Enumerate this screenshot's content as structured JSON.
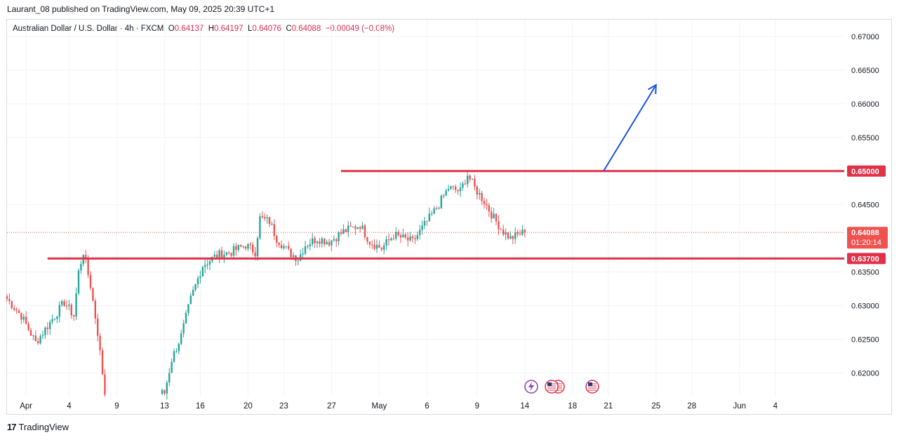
{
  "header": {
    "publish_line": "Laurant_08 published on TradingView.com, May 09, 2025 20:39 UTC+1"
  },
  "legend": {
    "symbol": "Australian Dollar / U.S. Dollar · 4h · FXCM",
    "o_label": "O",
    "o_value": "0.64137",
    "h_label": "H",
    "h_value": "0.64197",
    "l_label": "L",
    "l_value": "0.64076",
    "c_label": "C",
    "c_value": "0.64088",
    "change": "−0.00049 (−0.08%)"
  },
  "footer": {
    "brand": "TradingView",
    "logo_text": "17"
  },
  "colors": {
    "up": "#26a69a",
    "down": "#ef5350",
    "level_line": "#e0334a",
    "arrow": "#1e53e5",
    "grid": "#f0f3fa",
    "text": "#131722"
  },
  "chart_data": {
    "type": "candlestick",
    "title": "Australian Dollar / U.S. Dollar · 4h · FXCM",
    "xlabel": "",
    "ylabel": "",
    "ylim": [
      0.6165,
      0.6725
    ],
    "grid": true,
    "y_ticks": [
      "0.67000",
      "0.66500",
      "0.66000",
      "0.65500",
      "0.64500",
      "0.63500",
      "0.63000",
      "0.62500",
      "0.62000"
    ],
    "x_ticks": [
      {
        "label": "Apr",
        "bar": 8
      },
      {
        "label": "4",
        "bar": 26
      },
      {
        "label": "9",
        "bar": 46
      },
      {
        "label": "13",
        "bar": 66
      },
      {
        "label": "16",
        "bar": 81
      },
      {
        "label": "20",
        "bar": 101
      },
      {
        "label": "23",
        "bar": 116
      },
      {
        "label": "27",
        "bar": 136
      },
      {
        "label": "May",
        "bar": 156
      },
      {
        "label": "6",
        "bar": 176
      },
      {
        "label": "9",
        "bar": 197
      },
      {
        "label": "14",
        "bar": 217
      },
      {
        "label": "18",
        "bar": 237
      },
      {
        "label": "21",
        "bar": 252
      },
      {
        "label": "25",
        "bar": 272
      },
      {
        "label": "28",
        "bar": 287
      },
      {
        "label": "Jun",
        "bar": 307
      },
      {
        "label": "4",
        "bar": 322
      }
    ],
    "levels": [
      {
        "price": 0.65,
        "label": "0.65000",
        "start_bar": 140
      },
      {
        "price": 0.637,
        "label": "0.63700",
        "start_bar": 17
      }
    ],
    "current_price": {
      "price": 0.64088,
      "label": "0.64088",
      "countdown": "01:20:14"
    },
    "arrow": {
      "from": [
        250,
        0.65
      ],
      "to": [
        272,
        0.6628
      ]
    },
    "anchors": [
      [
        0,
        0.631
      ],
      [
        6,
        0.6285
      ],
      [
        12,
        0.6245
      ],
      [
        18,
        0.6275
      ],
      [
        24,
        0.6305
      ],
      [
        28,
        0.6285
      ],
      [
        30,
        0.635
      ],
      [
        32,
        0.638
      ],
      [
        35,
        0.633
      ],
      [
        38,
        0.626
      ],
      [
        41,
        0.617
      ],
      [
        66,
        0.617
      ],
      [
        69,
        0.622
      ],
      [
        73,
        0.6255
      ],
      [
        77,
        0.631
      ],
      [
        82,
        0.636
      ],
      [
        88,
        0.6375
      ],
      [
        94,
        0.638
      ],
      [
        100,
        0.639
      ],
      [
        104,
        0.638
      ],
      [
        106,
        0.643
      ],
      [
        110,
        0.6425
      ],
      [
        113,
        0.64
      ],
      [
        118,
        0.638
      ],
      [
        122,
        0.637
      ],
      [
        125,
        0.639
      ],
      [
        130,
        0.64
      ],
      [
        135,
        0.6395
      ],
      [
        141,
        0.641
      ],
      [
        148,
        0.642
      ],
      [
        152,
        0.6395
      ],
      [
        157,
        0.6385
      ],
      [
        162,
        0.6405
      ],
      [
        166,
        0.64
      ],
      [
        170,
        0.6395
      ],
      [
        175,
        0.642
      ],
      [
        180,
        0.6445
      ],
      [
        185,
        0.6475
      ],
      [
        190,
        0.647
      ],
      [
        193,
        0.6495
      ],
      [
        196,
        0.6475
      ],
      [
        200,
        0.6455
      ],
      [
        204,
        0.643
      ],
      [
        208,
        0.641
      ],
      [
        211,
        0.64
      ],
      [
        214,
        0.6405
      ],
      [
        217,
        0.641
      ]
    ],
    "gap": {
      "start_bar": 42,
      "end_bar": 64
    },
    "visible_bars": 330
  }
}
